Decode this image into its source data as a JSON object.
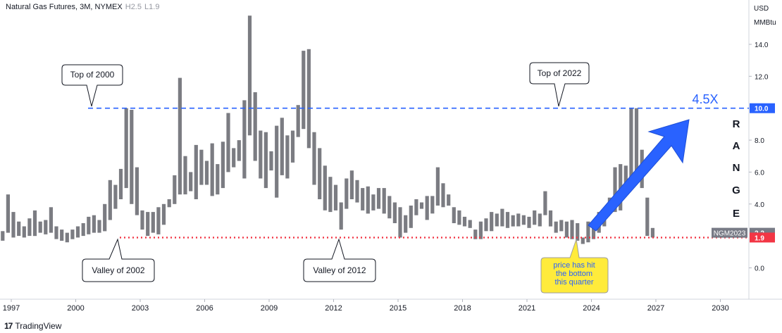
{
  "header": {
    "title": "Natural Gas Futures, 3M, NYMEX",
    "high_label": "H",
    "high_value": "2.5",
    "low_label": "L",
    "low_value": "1.9"
  },
  "footer": {
    "logo_mark": "17",
    "brand": "TradingView"
  },
  "price_axis": {
    "unit_line1": "USD",
    "unit_line2": "MMBtu",
    "ticks": [
      {
        "label": "14.0",
        "value": 14
      },
      {
        "label": "12.0",
        "value": 12
      },
      {
        "label": "8.0",
        "value": 8
      },
      {
        "label": "6.0",
        "value": 6
      },
      {
        "label": "4.0",
        "value": 4
      },
      {
        "label": "0.0",
        "value": 0
      }
    ],
    "badges": [
      {
        "label": "10.0",
        "value": 10,
        "color": "#2962ff"
      },
      {
        "label": "2.2",
        "value": 2.2,
        "color": "#787b86",
        "symbol": "NGM2023"
      },
      {
        "label": "1.9",
        "value": 1.9,
        "color": "#f23645"
      }
    ]
  },
  "time_axis": {
    "ticks": [
      "1997",
      "2000",
      "2003",
      "2006",
      "2009",
      "2012",
      "2015",
      "2018",
      "2021",
      "2024",
      "2027",
      "2030"
    ]
  },
  "colors": {
    "bar": "#7b7c82",
    "top_line": "#2962ff",
    "bottom_line": "#f23645",
    "arrow": "#2962ff",
    "note_bg": "#ffeb3b"
  },
  "annotations": {
    "top_2000": "Top of 2000",
    "valley_2002": "Valley of 2002",
    "valley_2012": "Valley of 2012",
    "top_2022": "Top of 2022",
    "range_letters": [
      "R",
      "A",
      "N",
      "G",
      "E"
    ],
    "multiplier": "4.5X",
    "note_lines": [
      "price has hit",
      "the bottom",
      "this quarter"
    ]
  },
  "chart_data": {
    "type": "ohlc-bar",
    "title": "Natural Gas Futures, 3M, NYMEX",
    "interval": "3M",
    "x_start_year": 1996.6,
    "bar_period_years": 0.25,
    "ylim": [
      -1.5,
      16.2
    ],
    "reference_lines": [
      {
        "value": 10.0,
        "style": "dashed",
        "color": "#2962ff"
      },
      {
        "value": 1.9,
        "style": "dotted",
        "color": "#f23645"
      }
    ],
    "bars": [
      [
        2.3,
        1.7
      ],
      [
        4.6,
        2.2
      ],
      [
        3.5,
        1.9
      ],
      [
        2.9,
        2.0
      ],
      [
        2.6,
        1.9
      ],
      [
        3.1,
        2.0
      ],
      [
        3.6,
        2.0
      ],
      [
        2.9,
        2.2
      ],
      [
        3.0,
        2.1
      ],
      [
        3.8,
        2.2
      ],
      [
        2.6,
        1.8
      ],
      [
        2.4,
        1.7
      ],
      [
        2.2,
        1.6
      ],
      [
        2.4,
        1.8
      ],
      [
        2.6,
        1.9
      ],
      [
        2.8,
        2.0
      ],
      [
        3.2,
        2.1
      ],
      [
        3.3,
        2.2
      ],
      [
        3.0,
        2.2
      ],
      [
        4.0,
        2.3
      ],
      [
        5.5,
        3.0
      ],
      [
        5.2,
        3.7
      ],
      [
        6.2,
        4.3
      ],
      [
        10.0,
        5.0
      ],
      [
        9.9,
        4.0
      ],
      [
        6.3,
        3.3
      ],
      [
        3.6,
        2.4
      ],
      [
        3.5,
        2.0
      ],
      [
        3.5,
        2.2
      ],
      [
        3.8,
        2.1
      ],
      [
        4.0,
        2.7
      ],
      [
        4.3,
        3.8
      ],
      [
        5.8,
        4.0
      ],
      [
        11.9,
        4.6
      ],
      [
        7.0,
        4.6
      ],
      [
        6.0,
        4.8
      ],
      [
        7.7,
        4.3
      ],
      [
        7.4,
        5.2
      ],
      [
        6.7,
        5.2
      ],
      [
        7.8,
        4.5
      ],
      [
        6.5,
        4.6
      ],
      [
        7.9,
        5.0
      ],
      [
        9.7,
        6.0
      ],
      [
        7.5,
        6.3
      ],
      [
        8.0,
        6.7
      ],
      [
        10.5,
        5.6
      ],
      [
        15.8,
        8.3
      ],
      [
        11.0,
        6.7
      ],
      [
        8.6,
        5.6
      ],
      [
        8.5,
        5.0
      ],
      [
        7.3,
        6.1
      ],
      [
        8.9,
        4.4
      ],
      [
        9.4,
        5.8
      ],
      [
        8.3,
        5.6
      ],
      [
        8.6,
        6.6
      ],
      [
        10.2,
        8.2
      ],
      [
        13.6,
        8.7
      ],
      [
        13.7,
        7.5
      ],
      [
        8.5,
        5.2
      ],
      [
        7.5,
        4.3
      ],
      [
        6.4,
        3.6
      ],
      [
        5.7,
        3.5
      ],
      [
        5.2,
        3.6
      ],
      [
        4.1,
        2.4
      ],
      [
        5.6,
        3.7
      ],
      [
        6.1,
        4.3
      ],
      [
        5.5,
        4.1
      ],
      [
        5.0,
        3.6
      ],
      [
        5.1,
        3.4
      ],
      [
        4.6,
        3.6
      ],
      [
        5.0,
        3.7
      ],
      [
        5.0,
        3.4
      ],
      [
        4.5,
        3.1
      ],
      [
        4.1,
        2.8
      ],
      [
        3.8,
        1.9
      ],
      [
        3.3,
        2.2
      ],
      [
        3.9,
        2.5
      ],
      [
        4.3,
        3.3
      ],
      [
        4.1,
        3.7
      ],
      [
        4.5,
        3.0
      ],
      [
        4.5,
        3.4
      ],
      [
        6.3,
        3.9
      ],
      [
        5.3,
        3.8
      ],
      [
        4.6,
        3.9
      ],
      [
        3.8,
        2.8
      ],
      [
        3.6,
        2.7
      ],
      [
        3.2,
        2.6
      ],
      [
        3.0,
        2.5
      ],
      [
        2.4,
        1.8
      ],
      [
        2.9,
        1.8
      ],
      [
        3.1,
        2.3
      ],
      [
        3.5,
        2.3
      ],
      [
        3.4,
        2.6
      ],
      [
        3.7,
        2.6
      ],
      [
        3.5,
        2.5
      ],
      [
        3.3,
        2.6
      ],
      [
        3.4,
        2.6
      ],
      [
        3.3,
        2.7
      ],
      [
        3.2,
        2.5
      ],
      [
        3.6,
        2.7
      ],
      [
        3.4,
        2.6
      ],
      [
        4.8,
        3.3
      ],
      [
        3.6,
        2.6
      ],
      [
        2.9,
        2.2
      ],
      [
        3.0,
        2.3
      ],
      [
        2.9,
        1.9
      ],
      [
        3.0,
        1.8
      ],
      [
        2.8,
        1.7
      ],
      [
        1.9,
        1.5
      ],
      [
        2.9,
        1.6
      ],
      [
        2.9,
        1.8
      ],
      [
        3.5,
        2.2
      ],
      [
        3.4,
        2.6
      ],
      [
        4.4,
        3.5
      ],
      [
        6.3,
        3.5
      ],
      [
        6.5,
        3.6
      ],
      [
        6.4,
        4.7
      ],
      [
        10.0,
        5.5
      ],
      [
        10.0,
        5.3
      ],
      [
        7.4,
        5.0
      ],
      [
        4.4,
        2.0
      ],
      [
        2.5,
        1.9
      ]
    ]
  }
}
